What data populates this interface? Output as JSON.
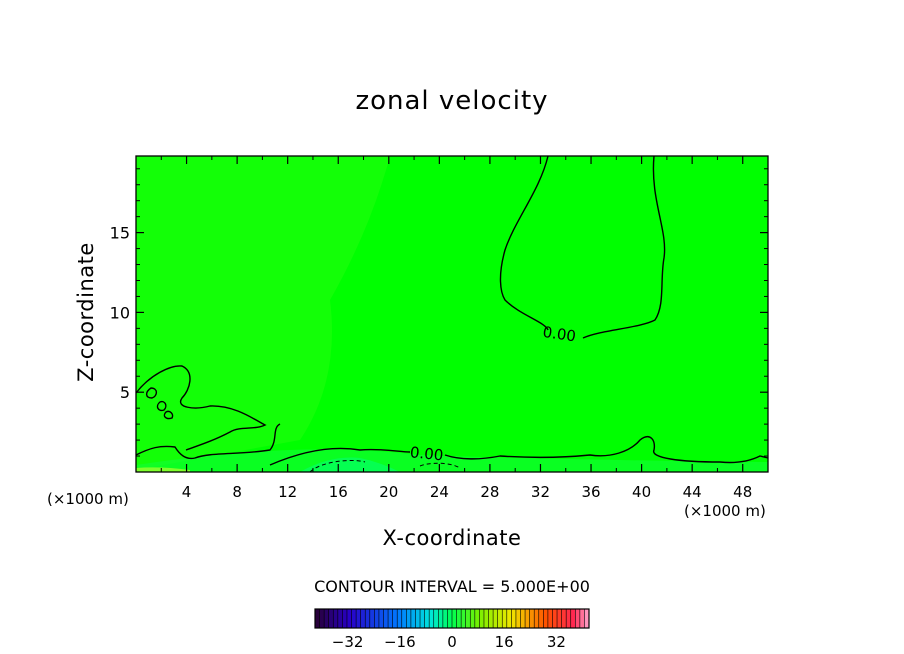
{
  "chart_data": {
    "type": "heatmap",
    "title": "zonal velocity",
    "xlabel": "X-coordinate",
    "ylabel": "Z-coordinate",
    "x_unit_label": "(×1000 m)",
    "xlim": [
      0,
      50
    ],
    "ylim": [
      0,
      19.8
    ],
    "x_ticks": [
      4,
      8,
      12,
      16,
      20,
      24,
      28,
      32,
      36,
      40,
      44,
      48
    ],
    "y_ticks": [
      5,
      10,
      15
    ],
    "contour_interval_text": "CONTOUR INTERVAL = 5.000E+00",
    "contour_labels": [
      {
        "text": "0.00",
        "x": 33.5,
        "z": 8.7
      },
      {
        "text": "0.00",
        "x": 23.0,
        "z": 1.2
      }
    ],
    "colorbar": {
      "min": -42,
      "max": 42,
      "tick_values": [
        -32,
        -16,
        0,
        16,
        32
      ],
      "tick_labels": [
        "−32",
        "−16",
        "0",
        "16",
        "32"
      ]
    },
    "field_color": "#00ff00"
  }
}
